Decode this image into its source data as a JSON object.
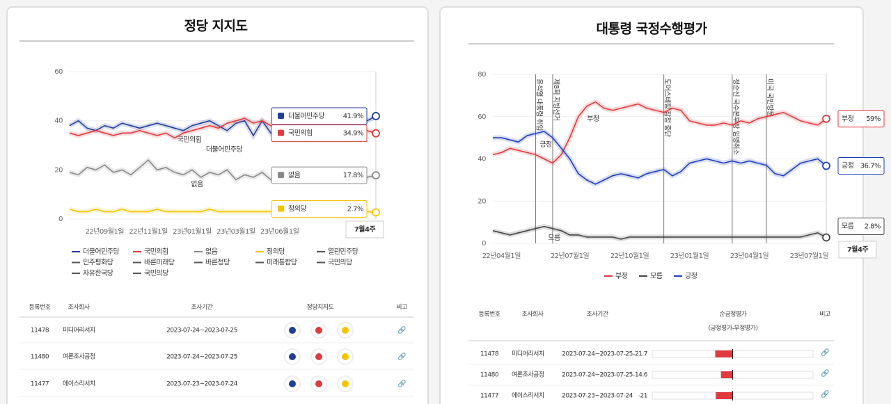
{
  "chart_data": [
    {
      "type": "line",
      "title": "정당 지지도",
      "categories": [
        null,
        null,
        null,
        null,
        "22년09월1일",
        null,
        null,
        null,
        null,
        "22년11월1일",
        null,
        null,
        null,
        null,
        "23년01월1일",
        null,
        null,
        null,
        null,
        "23년03월1일",
        null,
        null,
        null,
        null,
        "23년06월1일",
        null,
        null,
        null,
        null,
        null,
        null,
        null,
        null,
        null,
        null,
        null
      ],
      "ylim": [
        0,
        60
      ],
      "yticks": [
        0,
        20,
        40,
        60
      ],
      "grid": true,
      "series": [
        {
          "name": "더불어민주당",
          "color": "#1f3f99",
          "last_label": "41.9%",
          "values": [
            38,
            40,
            37,
            36,
            38,
            37,
            39,
            38,
            37,
            38,
            39,
            38,
            37,
            36,
            38,
            39,
            40,
            38,
            36,
            39,
            40,
            34,
            40,
            35,
            39,
            40,
            38,
            41,
            37,
            38,
            40,
            39,
            41,
            38,
            40,
            41.9
          ]
        },
        {
          "name": "국민의힘",
          "color": "#e03a3e",
          "last_label": "34.9%",
          "values": [
            35,
            34,
            35,
            36,
            35,
            34,
            35,
            35,
            36,
            35,
            34,
            35,
            33,
            35,
            36,
            37,
            38,
            37,
            39,
            40,
            41,
            39,
            40,
            38,
            37,
            36,
            35,
            36,
            34,
            35,
            36,
            35,
            34,
            35,
            36,
            34.9
          ]
        },
        {
          "name": "없음",
          "color": "#888888",
          "last_label": "17.8%",
          "values": [
            19,
            18,
            21,
            20,
            22,
            19,
            20,
            18,
            21,
            24,
            20,
            21,
            19,
            18,
            20,
            17,
            19,
            18,
            20,
            16,
            18,
            17,
            19,
            16,
            17,
            18,
            17,
            16,
            18,
            17,
            18,
            17,
            16,
            18,
            17,
            17.8
          ]
        },
        {
          "name": "정의당",
          "color": "#f5c400",
          "last_label": "2.7%",
          "values": [
            4,
            3,
            3,
            4,
            3,
            3,
            4,
            3,
            3,
            3,
            4,
            3,
            3,
            3,
            3,
            3,
            4,
            3,
            3,
            3,
            3,
            3,
            3,
            3,
            4,
            3,
            3,
            3,
            3,
            3,
            3,
            3,
            3,
            3,
            3,
            2.7
          ]
        }
      ],
      "other_parties": [
        {
          "name": "열린민주당",
          "color": "#555555"
        },
        {
          "name": "민주평화당",
          "color": "#555555"
        },
        {
          "name": "바른미래당",
          "color": "#555555"
        },
        {
          "name": "바른정당",
          "color": "#555555"
        },
        {
          "name": "미래통합당",
          "color": "#555555"
        },
        {
          "name": "국민의당",
          "color": "#555555"
        },
        {
          "name": "자유한국당",
          "color": "#555555"
        },
        {
          "name": "국민의당",
          "color": "#555555"
        }
      ],
      "period_label": "7월4주"
    },
    {
      "type": "line",
      "title": "대통령 국정수행평가",
      "categories": [
        null,
        "22년04월1일",
        null,
        null,
        null,
        null,
        null,
        null,
        null,
        "22년07월1일",
        null,
        null,
        null,
        null,
        null,
        null,
        "22년10월1일",
        null,
        null,
        null,
        null,
        null,
        null,
        "23년01월1일",
        null,
        null,
        null,
        null,
        null,
        null,
        "23년04월1일",
        null,
        null,
        null,
        null,
        null,
        null,
        "23년07월1일",
        null,
        null
      ],
      "ylim": [
        0,
        80
      ],
      "yticks": [
        0,
        20,
        40,
        60,
        80
      ],
      "grid": true,
      "events": [
        {
          "at": 5,
          "label": "윤석열 대통령 취임"
        },
        {
          "at": 7,
          "label": "제8회 지방선거"
        },
        {
          "at": 20,
          "label": "도어스테핑 잠정 중단"
        },
        {
          "at": 28,
          "label": "정순신 국수본부장 임명취소"
        },
        {
          "at": 32,
          "label": "미국 국빈방문"
        }
      ],
      "series": [
        {
          "name": "부정",
          "color": "#e03a3e",
          "last_label": "59%",
          "values": [
            42,
            43,
            45,
            44,
            43,
            42,
            40,
            38,
            42,
            50,
            60,
            65,
            67,
            64,
            63,
            64,
            65,
            66,
            64,
            63,
            62,
            64,
            63,
            58,
            57,
            56,
            56,
            57,
            56,
            58,
            57,
            59,
            60,
            61,
            62,
            60,
            58,
            57,
            56,
            59
          ]
        },
        {
          "name": "모름",
          "color": "#444444",
          "last_label": "2.8%",
          "values": [
            6,
            5,
            4,
            5,
            6,
            7,
            8,
            7,
            6,
            4,
            4,
            3,
            3,
            3,
            3,
            2,
            3,
            3,
            3,
            3,
            3,
            3,
            3,
            3,
            3,
            3,
            3,
            3,
            3,
            3,
            3,
            3,
            3,
            3,
            3,
            3,
            3,
            4,
            5,
            2.8
          ]
        },
        {
          "name": "긍정",
          "color": "#1f3fbf",
          "last_label": "36.7%",
          "values": [
            50,
            50,
            49,
            48,
            51,
            52,
            53,
            50,
            45,
            40,
            33,
            30,
            28,
            30,
            32,
            33,
            32,
            31,
            33,
            34,
            35,
            32,
            34,
            38,
            39,
            40,
            39,
            38,
            39,
            38,
            39,
            38,
            37,
            33,
            32,
            35,
            38,
            39,
            40,
            36.7
          ]
        }
      ],
      "period_label": "7월4주"
    }
  ],
  "party_table": {
    "headers": [
      "등록번호",
      "조사회사",
      "조사기간",
      "정당지지도",
      "비고"
    ],
    "rows": [
      [
        "11478",
        "미디어리서치",
        "2023-07-24~2023-07-25"
      ],
      [
        "11480",
        "여론조사공정",
        "2023-07-24~2023-07-25"
      ],
      [
        "11477",
        "에이스리서치",
        "2023-07-23~2023-07-24"
      ]
    ]
  },
  "approval_table": {
    "headers": [
      "등록번호",
      "조사회사",
      "조사기간",
      "순긍정평가",
      "비고"
    ],
    "subheader": "(긍정평가-부정평가)",
    "net_lim": [
      -100,
      100
    ],
    "rows": [
      {
        "cells": [
          "11478",
          "미디어리서치",
          "2023-07-24~2023-07-25"
        ],
        "net": -21.7
      },
      {
        "cells": [
          "11480",
          "여론조사공정",
          "2023-07-24~2023-07-25"
        ],
        "net": -14.6
      },
      {
        "cells": [
          "11477",
          "에이스리서치",
          "2023-07-23~2023-07-24"
        ],
        "net": -21
      }
    ]
  }
}
